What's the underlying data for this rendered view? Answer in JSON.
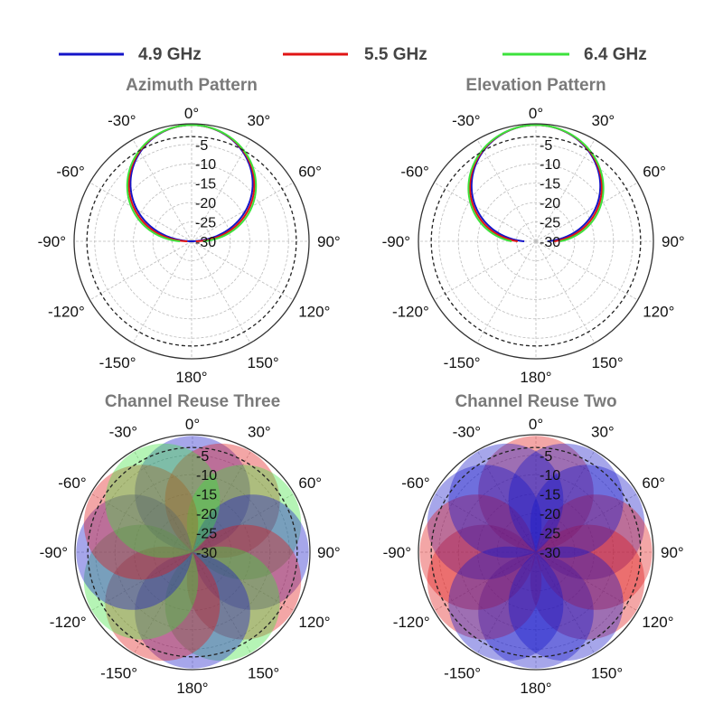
{
  "legend": {
    "items": [
      {
        "label": "4.9 GHz",
        "color": "#1414c8"
      },
      {
        "label": "5.5 GHz",
        "color": "#e01414"
      },
      {
        "label": "6.4 GHz",
        "color": "#3ce23c"
      }
    ]
  },
  "chart_data": [
    {
      "type": "polar-line",
      "title": "Azimuth Pattern",
      "angle_tick_labels": [
        "0°",
        "30°",
        "60°",
        "90°",
        "120°",
        "150°",
        "180°",
        "-150°",
        "-120°",
        "-90°",
        "-60°",
        "-30°"
      ],
      "radial_tick_labels": [
        "-5",
        "-10",
        "-15",
        "-20",
        "-25",
        "-30"
      ],
      "radial_range_db": [
        -30,
        0
      ],
      "reference_circle_db": -3,
      "series": [
        {
          "name": "4.9 GHz",
          "color": "#1414c8",
          "beam_center_deg": 0,
          "half_power_beamwidth_deg": 56
        },
        {
          "name": "5.5 GHz",
          "color": "#e01414",
          "beam_center_deg": 0,
          "half_power_beamwidth_deg": 58
        },
        {
          "name": "6.4 GHz",
          "color": "#3ce23c",
          "beam_center_deg": 0,
          "half_power_beamwidth_deg": 60
        }
      ]
    },
    {
      "type": "polar-line",
      "title": "Elevation Pattern",
      "angle_tick_labels": [
        "0°",
        "30°",
        "60°",
        "90°",
        "120°",
        "150°",
        "180°",
        "-150°",
        "-120°",
        "-90°",
        "-60°",
        "-30°"
      ],
      "radial_tick_labels": [
        "-5",
        "-10",
        "-15",
        "-20",
        "-25",
        "-30"
      ],
      "radial_range_db": [
        -30,
        0
      ],
      "reference_circle_db": -3,
      "series": [
        {
          "name": "4.9 GHz",
          "color": "#1414c8",
          "beam_center_deg": 0,
          "half_power_beamwidth_deg": 60
        },
        {
          "name": "5.5 GHz",
          "color": "#e01414",
          "beam_center_deg": 0,
          "half_power_beamwidth_deg": 62
        },
        {
          "name": "6.4 GHz",
          "color": "#3ce23c",
          "beam_center_deg": 0,
          "half_power_beamwidth_deg": 64
        }
      ]
    },
    {
      "type": "polar-area",
      "title": "Channel Reuse Three",
      "angle_tick_labels": [
        "0°",
        "30°",
        "60°",
        "90°",
        "120°",
        "150°",
        "180°",
        "-150°",
        "-120°",
        "-90°",
        "-60°",
        "-30°"
      ],
      "radial_tick_labels": [
        "-5",
        "-10",
        "-15",
        "-20",
        "-25",
        "-30"
      ],
      "radial_range_db": [
        -30,
        0
      ],
      "reference_circle_db": -3,
      "lobe_half_power_beamwidth_deg": 52,
      "lobes": [
        {
          "center_deg": 0,
          "channel": "4.9 GHz"
        },
        {
          "center_deg": 30,
          "channel": "5.5 GHz"
        },
        {
          "center_deg": 60,
          "channel": "6.4 GHz"
        },
        {
          "center_deg": 90,
          "channel": "4.9 GHz"
        },
        {
          "center_deg": 120,
          "channel": "5.5 GHz"
        },
        {
          "center_deg": 150,
          "channel": "6.4 GHz"
        },
        {
          "center_deg": 180,
          "channel": "4.9 GHz"
        },
        {
          "center_deg": -150,
          "channel": "5.5 GHz"
        },
        {
          "center_deg": -120,
          "channel": "6.4 GHz"
        },
        {
          "center_deg": -90,
          "channel": "4.9 GHz"
        },
        {
          "center_deg": -60,
          "channel": "5.5 GHz"
        },
        {
          "center_deg": -30,
          "channel": "6.4 GHz"
        }
      ]
    },
    {
      "type": "polar-area",
      "title": "Channel Reuse Two",
      "angle_tick_labels": [
        "0°",
        "30°",
        "60°",
        "90°",
        "120°",
        "150°",
        "180°",
        "-150°",
        "-120°",
        "-90°",
        "-60°",
        "-30°"
      ],
      "radial_tick_labels": [
        "-5",
        "-10",
        "-15",
        "-20",
        "-25",
        "-30"
      ],
      "radial_range_db": [
        -30,
        0
      ],
      "reference_circle_db": -3,
      "lobe_half_power_beamwidth_deg": 52,
      "lobes": [
        {
          "center_deg": 0,
          "channel": "5.5 GHz"
        },
        {
          "center_deg": 60,
          "channel": "4.9 GHz"
        },
        {
          "center_deg": 120,
          "channel": "5.5 GHz"
        },
        {
          "center_deg": 180,
          "channel": "4.9 GHz"
        },
        {
          "center_deg": -120,
          "channel": "5.5 GHz"
        },
        {
          "center_deg": -60,
          "channel": "4.9 GHz"
        },
        {
          "center_deg": 90,
          "channel": "5.5 GHz"
        },
        {
          "center_deg": -90,
          "channel": "5.5 GHz"
        },
        {
          "center_deg": 30,
          "channel": "4.9 GHz"
        },
        {
          "center_deg": -30,
          "channel": "4.9 GHz"
        },
        {
          "center_deg": 150,
          "channel": "4.9 GHz"
        },
        {
          "center_deg": -150,
          "channel": "4.9 GHz"
        }
      ]
    }
  ]
}
